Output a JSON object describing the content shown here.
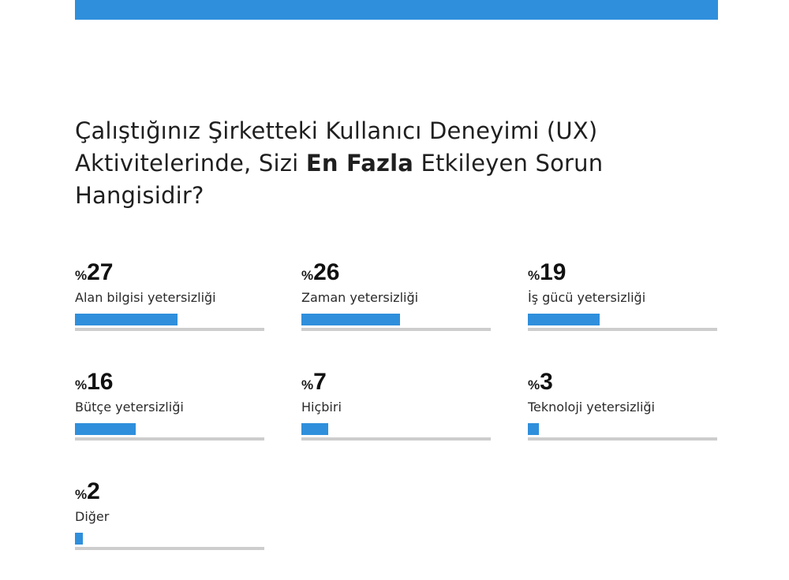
{
  "header": {
    "accent_color": "#2f8fdc"
  },
  "question": {
    "line1": "Çalıştığınız Şirketteki Kullanıcı Deneyimi (UX)",
    "line2_before": "Aktivitelerinde, Sizi ",
    "line2_bold": "En Fazla",
    "line2_after": " Etkileyen Sorun",
    "line3": "Hangisidir?"
  },
  "chart_data": {
    "type": "bar",
    "categories": [
      "Alan bilgisi yetersizliği",
      "Zaman yetersizliği",
      "İş gücü yetersizliği",
      "Bütçe yetersizliği",
      "Hiçbiri",
      "Teknoloji yetersizliği",
      "Diğer"
    ],
    "values": [
      27,
      26,
      19,
      16,
      7,
      3,
      2
    ],
    "value_prefix": "%",
    "ylim": [
      0,
      50
    ],
    "bar_color": "#2f8fdc",
    "track_color": "#cdcdcd"
  }
}
